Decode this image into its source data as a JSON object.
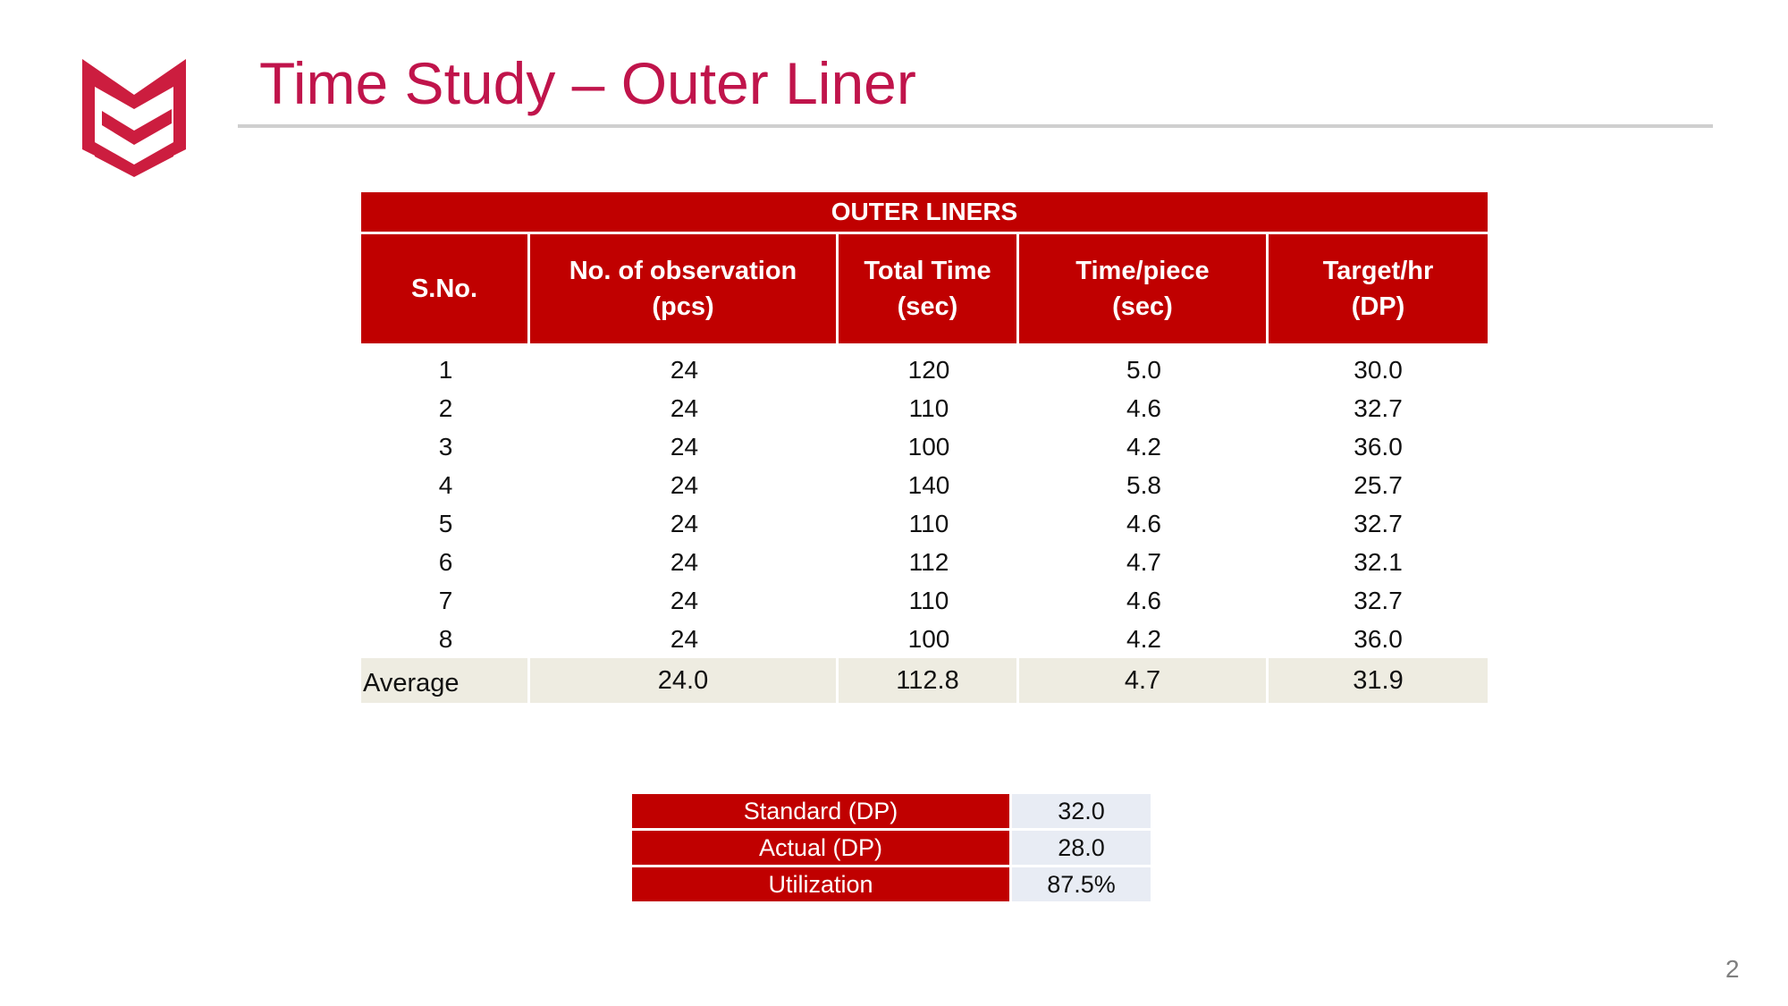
{
  "slide": {
    "title": "Time Study – Outer Liner",
    "page_number": "2",
    "accent_color": "#c0144b",
    "table_color": "#c00000"
  },
  "table": {
    "banner": "OUTER LINERS",
    "headers": [
      [
        "S.No.",
        ""
      ],
      [
        "No. of observation",
        "(pcs)"
      ],
      [
        "Total Time",
        "(sec)"
      ],
      [
        "Time/piece",
        "(sec)"
      ],
      [
        "Target/hr",
        "(DP)"
      ]
    ],
    "rows": [
      [
        "1",
        "24",
        "120",
        "5.0",
        "30.0"
      ],
      [
        "2",
        "24",
        "110",
        "4.6",
        "32.7"
      ],
      [
        "3",
        "24",
        "100",
        "4.2",
        "36.0"
      ],
      [
        "4",
        "24",
        "140",
        "5.8",
        "25.7"
      ],
      [
        "5",
        "24",
        "110",
        "4.6",
        "32.7"
      ],
      [
        "6",
        "24",
        "112",
        "4.7",
        "32.1"
      ],
      [
        "7",
        "24",
        "110",
        "4.6",
        "32.7"
      ],
      [
        "8",
        "24",
        "100",
        "4.2",
        "36.0"
      ]
    ],
    "average": [
      "Average",
      "24.0",
      "112.8",
      "4.7",
      "31.9"
    ]
  },
  "summary": [
    {
      "label": "Standard (DP)",
      "value": "32.0"
    },
    {
      "label": "Actual (DP)",
      "value": "28.0"
    },
    {
      "label": "Utilization",
      "value": "87.5%"
    }
  ]
}
